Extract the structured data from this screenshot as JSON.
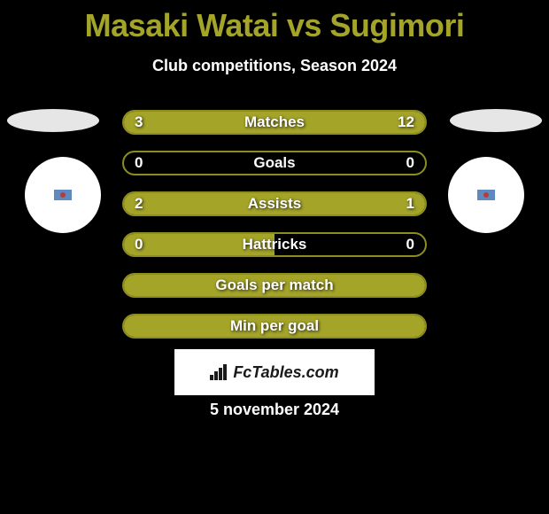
{
  "title": "Masaki Watai vs Sugimori",
  "subtitle": "Club competitions, Season 2024",
  "colors": {
    "background": "#000000",
    "accent": "#a4a429",
    "bar_border": "#8e8e20",
    "text_white": "#ffffff"
  },
  "typography": {
    "title_fontsize": 36,
    "subtitle_fontsize": 18,
    "bar_label_fontsize": 17
  },
  "player_left": {
    "name": "Masaki Watai",
    "flag": "japan"
  },
  "player_right": {
    "name": "Sugimori",
    "flag": "japan"
  },
  "rows": [
    {
      "label": "Matches",
      "left": "3",
      "right": "12",
      "left_pct": 20,
      "right_pct": 80,
      "show_values": true
    },
    {
      "label": "Goals",
      "left": "0",
      "right": "0",
      "left_pct": 0,
      "right_pct": 0,
      "show_values": true
    },
    {
      "label": "Assists",
      "left": "2",
      "right": "1",
      "left_pct": 67,
      "right_pct": 33,
      "show_values": true
    },
    {
      "label": "Hattricks",
      "left": "0",
      "right": "0",
      "left_pct": 50,
      "right_pct": 0,
      "show_values": true
    },
    {
      "label": "Goals per match",
      "left": "",
      "right": "",
      "left_pct": 100,
      "right_pct": 0,
      "show_values": false
    },
    {
      "label": "Min per goal",
      "left": "",
      "right": "",
      "left_pct": 100,
      "right_pct": 0,
      "show_values": false
    }
  ],
  "branding": "FcTables.com",
  "footer_date": "5 november 2024"
}
